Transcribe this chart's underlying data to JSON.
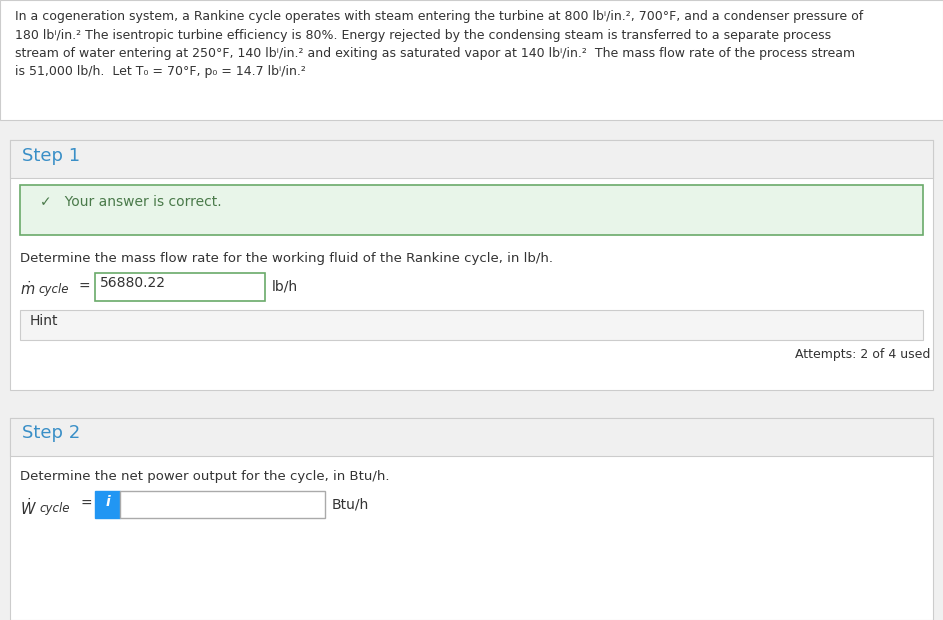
{
  "bg_color": "#f0f0f0",
  "white": "#ffffff",
  "step1_color": "#3a8fc7",
  "step2_color": "#3a8fc7",
  "correct_bg": "#e8f5e9",
  "correct_border": "#6aaa6a",
  "correct_text_color": "#4a7a4a",
  "text_color": "#333333",
  "hint_bg": "#f5f5f5",
  "hint_border": "#cccccc",
  "input_border_step1": "#6aaa6a",
  "input_border_step2": "#aaaaaa",
  "info_icon_color": "#2196F3",
  "divider_color": "#cccccc",
  "prob_line1": "In a cogeneration system, a Rankine cycle operates with steam entering the turbine at 800 lbⁱ/in.², 700°F, and a condenser pressure of",
  "prob_line2": "180 lbⁱ/in.² The isentropic turbine efficiency is 80%. Energy rejected by the condensing steam is transferred to a separate process",
  "prob_line3": "stream of water entering at 250°F, 140 lbⁱ/in.² and exiting as saturated vapor at 140 lbⁱ/in.²  The mass flow rate of the process stream",
  "prob_line4": "is 51,000 lb/h.  Let T₀ = 70°F, p₀ = 14.7 lbⁱ/in.²",
  "step1_label": "Step 1",
  "correct_text": "✓   Your answer is correct.",
  "step1_question": "Determine the mass flow rate for the working fluid of the Rankine cycle, in lb/h.",
  "mdot_value": "56880.22",
  "mdot_unit": "lb/h",
  "hint_label": "Hint",
  "attempts_text": "Attempts: 2 of 4 used",
  "step2_label": "Step 2",
  "step2_question": "Determine the net power output for the cycle, in Btu/h.",
  "wdot_unit": "Btu/h"
}
